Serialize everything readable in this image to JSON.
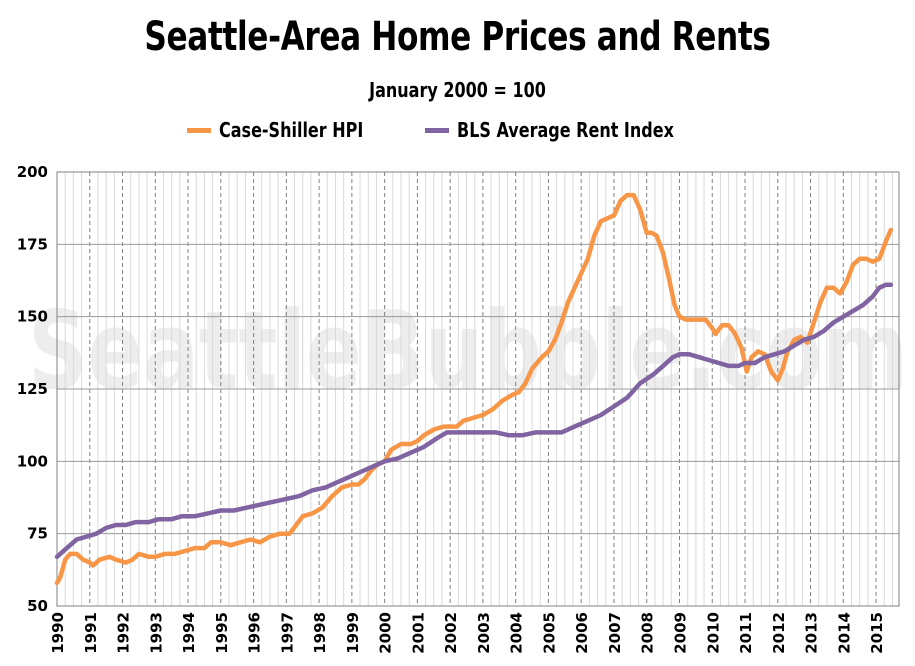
{
  "chart_data": {
    "type": "line",
    "title": "Seattle-Area Home Prices and Rents",
    "subtitle": "January 2000 = 100",
    "watermark": "SeattleBubble.com",
    "xlabel": "",
    "ylabel": "",
    "xlim": [
      1990.0,
      2015.7
    ],
    "ylim": [
      50,
      200
    ],
    "yticks": [
      50,
      75,
      100,
      125,
      150,
      175,
      200
    ],
    "xticks": [
      "1990",
      "1991",
      "1992",
      "1993",
      "1994",
      "1995",
      "1996",
      "1997",
      "1998",
      "1999",
      "2000",
      "2001",
      "2002",
      "2003",
      "2004",
      "2005",
      "2006",
      "2007",
      "2008",
      "2009",
      "2010",
      "2011",
      "2012",
      "2013",
      "2014",
      "2015"
    ],
    "legend_position": "top-center",
    "series": [
      {
        "name": "Case-Shiller HPI",
        "color": "#f79646",
        "points": [
          [
            1990.0,
            58
          ],
          [
            1990.1,
            60
          ],
          [
            1990.25,
            66
          ],
          [
            1990.4,
            68
          ],
          [
            1990.6,
            68
          ],
          [
            1990.8,
            66
          ],
          [
            1991.0,
            65
          ],
          [
            1991.1,
            64
          ],
          [
            1991.3,
            66
          ],
          [
            1991.6,
            67
          ],
          [
            1991.8,
            66
          ],
          [
            1992.1,
            65
          ],
          [
            1992.3,
            66
          ],
          [
            1992.5,
            68
          ],
          [
            1992.8,
            67
          ],
          [
            1993.0,
            67
          ],
          [
            1993.3,
            68
          ],
          [
            1993.6,
            68
          ],
          [
            1993.9,
            69
          ],
          [
            1994.2,
            70
          ],
          [
            1994.5,
            70
          ],
          [
            1994.7,
            72
          ],
          [
            1995.0,
            72
          ],
          [
            1995.3,
            71
          ],
          [
            1995.6,
            72
          ],
          [
            1995.9,
            73
          ],
          [
            1996.2,
            72
          ],
          [
            1996.5,
            74
          ],
          [
            1996.8,
            75
          ],
          [
            1997.1,
            75
          ],
          [
            1997.3,
            78
          ],
          [
            1997.5,
            81
          ],
          [
            1997.8,
            82
          ],
          [
            1998.1,
            84
          ],
          [
            1998.4,
            88
          ],
          [
            1998.7,
            91
          ],
          [
            1999.0,
            92
          ],
          [
            1999.2,
            92
          ],
          [
            1999.4,
            94
          ],
          [
            1999.6,
            97
          ],
          [
            1999.8,
            99
          ],
          [
            2000.0,
            100
          ],
          [
            2000.2,
            104
          ],
          [
            2000.5,
            106
          ],
          [
            2000.8,
            106
          ],
          [
            2001.0,
            107
          ],
          [
            2001.2,
            109
          ],
          [
            2001.5,
            111
          ],
          [
            2001.8,
            112
          ],
          [
            2002.0,
            112
          ],
          [
            2002.2,
            112
          ],
          [
            2002.4,
            114
          ],
          [
            2002.7,
            115
          ],
          [
            2003.0,
            116
          ],
          [
            2003.3,
            118
          ],
          [
            2003.6,
            121
          ],
          [
            2003.9,
            123
          ],
          [
            2004.1,
            124
          ],
          [
            2004.3,
            127
          ],
          [
            2004.5,
            132
          ],
          [
            2004.8,
            136
          ],
          [
            2005.0,
            138
          ],
          [
            2005.2,
            142
          ],
          [
            2005.4,
            148
          ],
          [
            2005.6,
            155
          ],
          [
            2005.8,
            160
          ],
          [
            2006.0,
            165
          ],
          [
            2006.2,
            170
          ],
          [
            2006.4,
            178
          ],
          [
            2006.6,
            183
          ],
          [
            2006.8,
            184
          ],
          [
            2007.0,
            185
          ],
          [
            2007.2,
            190
          ],
          [
            2007.4,
            192
          ],
          [
            2007.6,
            192
          ],
          [
            2007.8,
            187
          ],
          [
            2008.0,
            179
          ],
          [
            2008.15,
            179
          ],
          [
            2008.3,
            178
          ],
          [
            2008.5,
            172
          ],
          [
            2008.7,
            162
          ],
          [
            2008.85,
            154
          ],
          [
            2009.0,
            150
          ],
          [
            2009.2,
            149
          ],
          [
            2009.4,
            149
          ],
          [
            2009.6,
            149
          ],
          [
            2009.8,
            149
          ],
          [
            2010.0,
            146
          ],
          [
            2010.1,
            144
          ],
          [
            2010.3,
            147
          ],
          [
            2010.5,
            147
          ],
          [
            2010.7,
            144
          ],
          [
            2010.9,
            139
          ],
          [
            2011.05,
            131
          ],
          [
            2011.2,
            136
          ],
          [
            2011.4,
            138
          ],
          [
            2011.6,
            137
          ],
          [
            2011.8,
            131
          ],
          [
            2012.0,
            128
          ],
          [
            2012.15,
            132
          ],
          [
            2012.3,
            138
          ],
          [
            2012.5,
            142
          ],
          [
            2012.7,
            143
          ],
          [
            2012.9,
            141
          ],
          [
            2013.1,
            148
          ],
          [
            2013.3,
            155
          ],
          [
            2013.5,
            160
          ],
          [
            2013.7,
            160
          ],
          [
            2013.9,
            158
          ],
          [
            2014.1,
            162
          ],
          [
            2014.3,
            168
          ],
          [
            2014.5,
            170
          ],
          [
            2014.7,
            170
          ],
          [
            2014.9,
            169
          ],
          [
            2015.1,
            170
          ],
          [
            2015.3,
            176
          ],
          [
            2015.45,
            180
          ]
        ]
      },
      {
        "name": "BLS Average Rent Index",
        "color": "#8064a2",
        "points": [
          [
            1990.0,
            67
          ],
          [
            1990.3,
            70
          ],
          [
            1990.6,
            73
          ],
          [
            1990.9,
            74
          ],
          [
            1991.2,
            75
          ],
          [
            1991.5,
            77
          ],
          [
            1991.8,
            78
          ],
          [
            1992.1,
            78
          ],
          [
            1992.4,
            79
          ],
          [
            1992.8,
            79
          ],
          [
            1993.1,
            80
          ],
          [
            1993.5,
            80
          ],
          [
            1993.8,
            81
          ],
          [
            1994.2,
            81
          ],
          [
            1994.6,
            82
          ],
          [
            1995.0,
            83
          ],
          [
            1995.4,
            83
          ],
          [
            1995.8,
            84
          ],
          [
            1996.2,
            85
          ],
          [
            1996.6,
            86
          ],
          [
            1997.0,
            87
          ],
          [
            1997.4,
            88
          ],
          [
            1997.8,
            90
          ],
          [
            1998.2,
            91
          ],
          [
            1998.6,
            93
          ],
          [
            1999.0,
            95
          ],
          [
            1999.4,
            97
          ],
          [
            1999.8,
            99
          ],
          [
            2000.0,
            100
          ],
          [
            2000.4,
            101
          ],
          [
            2000.8,
            103
          ],
          [
            2001.2,
            105
          ],
          [
            2001.6,
            108
          ],
          [
            2001.9,
            110
          ],
          [
            2002.2,
            110
          ],
          [
            2002.6,
            110
          ],
          [
            2003.0,
            110
          ],
          [
            2003.4,
            110
          ],
          [
            2003.8,
            109
          ],
          [
            2004.2,
            109
          ],
          [
            2004.6,
            110
          ],
          [
            2005.0,
            110
          ],
          [
            2005.4,
            110
          ],
          [
            2005.8,
            112
          ],
          [
            2006.2,
            114
          ],
          [
            2006.6,
            116
          ],
          [
            2007.0,
            119
          ],
          [
            2007.4,
            122
          ],
          [
            2007.8,
            127
          ],
          [
            2008.2,
            130
          ],
          [
            2008.5,
            133
          ],
          [
            2008.8,
            136
          ],
          [
            2009.0,
            137
          ],
          [
            2009.3,
            137
          ],
          [
            2009.6,
            136
          ],
          [
            2009.9,
            135
          ],
          [
            2010.2,
            134
          ],
          [
            2010.5,
            133
          ],
          [
            2010.8,
            133
          ],
          [
            2011.0,
            134
          ],
          [
            2011.3,
            134
          ],
          [
            2011.6,
            136
          ],
          [
            2011.9,
            137
          ],
          [
            2012.2,
            138
          ],
          [
            2012.5,
            140
          ],
          [
            2012.8,
            142
          ],
          [
            2013.1,
            143
          ],
          [
            2013.4,
            145
          ],
          [
            2013.7,
            148
          ],
          [
            2014.0,
            150
          ],
          [
            2014.3,
            152
          ],
          [
            2014.6,
            154
          ],
          [
            2014.9,
            157
          ],
          [
            2015.1,
            160
          ],
          [
            2015.3,
            161
          ],
          [
            2015.45,
            161
          ]
        ]
      }
    ]
  }
}
